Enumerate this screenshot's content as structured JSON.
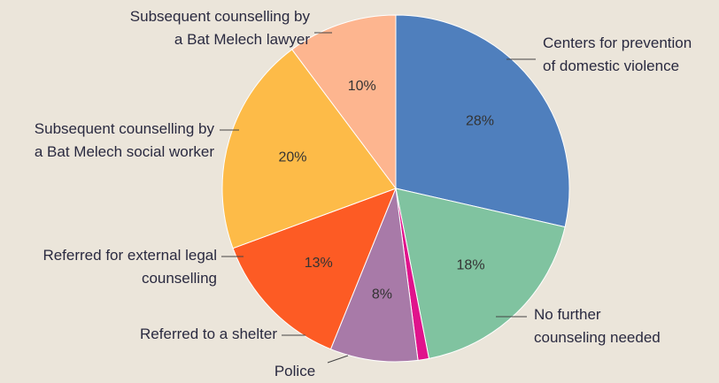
{
  "chart_data": {
    "type": "pie",
    "categories": [
      "Centers for prevention\nof domestic violence",
      "No further\ncounseling needed",
      "Police",
      "Referred to a shelter",
      "Referred for external legal\ncounselling",
      "Subsequent counselling by\na Bat Melech social worker",
      "Subsequent counselling by\na Bat Melech lawyer"
    ],
    "values": [
      28,
      18,
      1,
      8,
      13,
      20,
      10
    ],
    "value_labels": [
      "28%",
      "18%",
      null,
      "8%",
      "13%",
      "20%",
      "10%"
    ],
    "colors": [
      "#4f7fbd",
      "#80c3a0",
      "#e0138c",
      "#a87aa8",
      "#fd5b24",
      "#fdbb48",
      "#fdb58f"
    ]
  }
}
